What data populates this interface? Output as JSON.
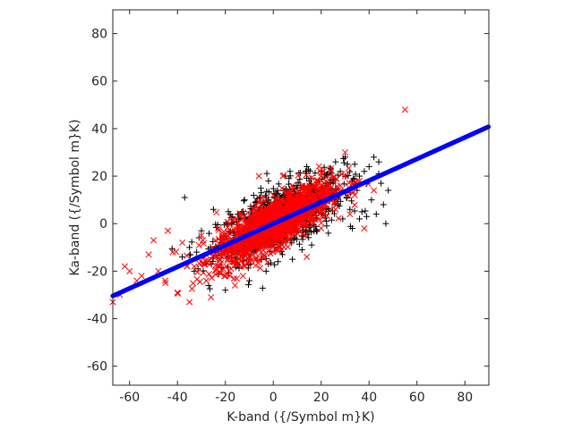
{
  "chart_data": {
    "type": "scatter",
    "title": "",
    "xlabel": "K-band ({/Symbol m}K)",
    "ylabel": "Ka-band ({/Symbol m}K)",
    "xlim": [
      -67,
      90
    ],
    "ylim": [
      -68,
      90
    ],
    "x_ticks": [
      -60,
      -40,
      -20,
      0,
      20,
      40,
      60,
      80
    ],
    "y_ticks": [
      -60,
      -40,
      -20,
      0,
      20,
      40,
      60,
      80
    ],
    "x_tick_labels": [
      "-60",
      "-40",
      "-20",
      "0",
      "20",
      "40",
      "60",
      "80"
    ],
    "y_tick_labels": [
      "-60",
      "-40",
      "-20",
      "0",
      "20",
      "40",
      "60",
      "80"
    ],
    "grid": false,
    "legend": false,
    "series": [
      {
        "marker": "plus",
        "color": "#000000",
        "description": "scatter of points, dense core near origin, correlated",
        "points": [
          [
            -37,
            11
          ],
          [
            -25,
            6
          ],
          [
            -30,
            -3
          ],
          [
            -35,
            -10
          ],
          [
            -38,
            -14
          ],
          [
            -33,
            -20
          ],
          [
            -27,
            -26
          ],
          [
            -22,
            -8
          ],
          [
            -18,
            4
          ],
          [
            -15,
            -17
          ],
          [
            -12,
            10
          ],
          [
            -8,
            -12
          ],
          [
            -5,
            13
          ],
          [
            -3,
            -20
          ],
          [
            0,
            8
          ],
          [
            3,
            -6
          ],
          [
            5,
            20
          ],
          [
            8,
            -15
          ],
          [
            10,
            15
          ],
          [
            12,
            -11
          ],
          [
            15,
            18
          ],
          [
            17,
            5
          ],
          [
            18,
            -3
          ],
          [
            20,
            22
          ],
          [
            22,
            10
          ],
          [
            24,
            23
          ],
          [
            25,
            17
          ],
          [
            27,
            8
          ],
          [
            28,
            22
          ],
          [
            30,
            13
          ],
          [
            31,
            25
          ],
          [
            32,
            6
          ],
          [
            33,
            18
          ],
          [
            34,
            25
          ],
          [
            35,
            14
          ],
          [
            36,
            20
          ],
          [
            37,
            5
          ],
          [
            38,
            22
          ],
          [
            39,
            3
          ],
          [
            40,
            24
          ],
          [
            41,
            10
          ],
          [
            42,
            28
          ],
          [
            43,
            4
          ],
          [
            44,
            21
          ],
          [
            45,
            17
          ],
          [
            46,
            8
          ],
          [
            47,
            0
          ],
          [
            48,
            14
          ],
          [
            36,
            2
          ],
          [
            33,
            -2
          ],
          [
            30,
            28
          ],
          [
            26,
            26
          ],
          [
            20,
            15
          ],
          [
            14,
            24
          ],
          [
            7,
            22
          ],
          [
            -2,
            18
          ],
          [
            -10,
            -24
          ],
          [
            -20,
            -28
          ],
          [
            -28,
            -17
          ],
          [
            -32,
            -12
          ],
          [
            2,
            -16
          ],
          [
            9,
            -6
          ],
          [
            16,
            -9
          ],
          [
            23,
            -4
          ],
          [
            29,
            2
          ]
        ]
      },
      {
        "marker": "x",
        "color": "#ff0000",
        "description": "scatter of points, dense core near origin, correlated",
        "points": [
          [
            -67,
            -33
          ],
          [
            -64,
            -30
          ],
          [
            -62,
            -18
          ],
          [
            -60,
            -20
          ],
          [
            -55,
            -22
          ],
          [
            -50,
            -7
          ],
          [
            -48,
            -20
          ],
          [
            -45,
            -25
          ],
          [
            -42,
            -12
          ],
          [
            -40,
            -29
          ],
          [
            -38,
            -8
          ],
          [
            -35,
            -33
          ],
          [
            -33,
            -18
          ],
          [
            -30,
            -5
          ],
          [
            -28,
            -24
          ],
          [
            -25,
            -14
          ],
          [
            -23,
            -2
          ],
          [
            -20,
            -22
          ],
          [
            -18,
            -9
          ],
          [
            -15,
            2
          ],
          [
            -12,
            -18
          ],
          [
            -10,
            -5
          ],
          [
            -8,
            6
          ],
          [
            -5,
            -12
          ],
          [
            -3,
            4
          ],
          [
            0,
            12
          ],
          [
            2,
            -8
          ],
          [
            5,
            6
          ],
          [
            8,
            16
          ],
          [
            10,
            -4
          ],
          [
            12,
            10
          ],
          [
            15,
            4
          ],
          [
            18,
            18
          ],
          [
            20,
            -2
          ],
          [
            22,
            12
          ],
          [
            24,
            22
          ],
          [
            26,
            6
          ],
          [
            28,
            16
          ],
          [
            30,
            30
          ],
          [
            32,
            4
          ],
          [
            34,
            12
          ],
          [
            36,
            18
          ],
          [
            38,
            -2
          ],
          [
            42,
            14
          ],
          [
            55,
            48
          ],
          [
            -44,
            -3
          ],
          [
            -36,
            -18
          ],
          [
            -26,
            -31
          ],
          [
            -16,
            -26
          ],
          [
            -6,
            20
          ],
          [
            4,
            20
          ],
          [
            14,
            -14
          ],
          [
            21,
            22
          ],
          [
            -52,
            -13
          ],
          [
            -57,
            -24
          ]
        ]
      },
      {
        "marker": "circle-dense",
        "color": "#0000ff",
        "description": "linear fit line drawn as dense blue markers",
        "fit": {
          "slope": 0.454,
          "intercept": 0.0
        },
        "x_range": [
          -67,
          90
        ]
      }
    ]
  }
}
